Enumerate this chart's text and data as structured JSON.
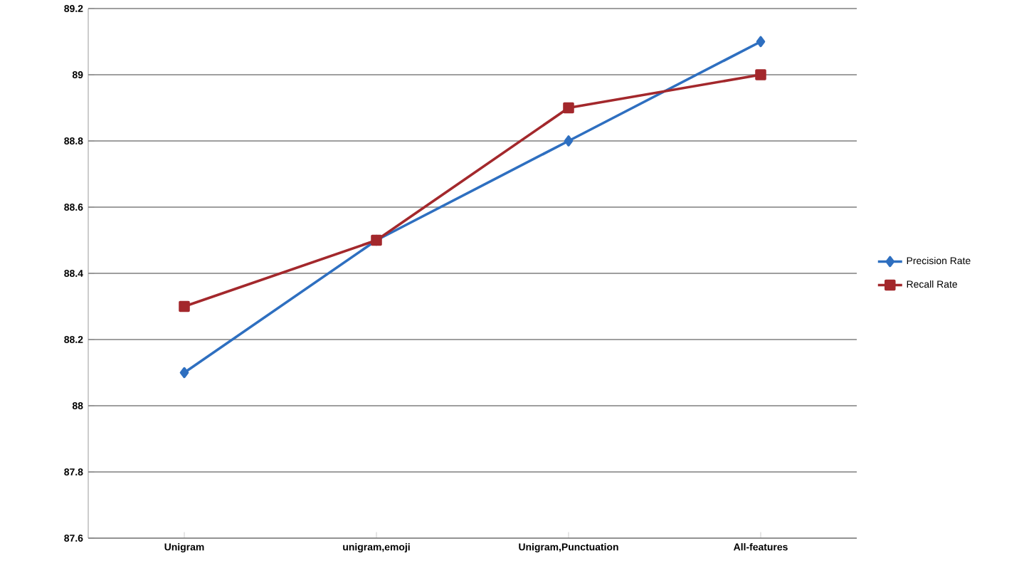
{
  "chart_data": {
    "type": "line",
    "categories": [
      "Unigram",
      "unigram,emoji",
      "Unigram,Punctuation",
      "All-features"
    ],
    "series": [
      {
        "name": "Precision Rate",
        "color": "#2e6fc0",
        "marker": "diamond",
        "values": [
          88.1,
          88.5,
          88.8,
          89.1
        ]
      },
      {
        "name": "Recall Rate",
        "color": "#a3282c",
        "marker": "square",
        "values": [
          88.3,
          88.5,
          88.9,
          89.0
        ]
      }
    ],
    "ylim": [
      87.6,
      89.2
    ],
    "yticks": [
      87.6,
      87.8,
      88,
      88.2,
      88.4,
      88.6,
      88.8,
      89,
      89.2
    ],
    "grid": "y",
    "legend": "right"
  }
}
